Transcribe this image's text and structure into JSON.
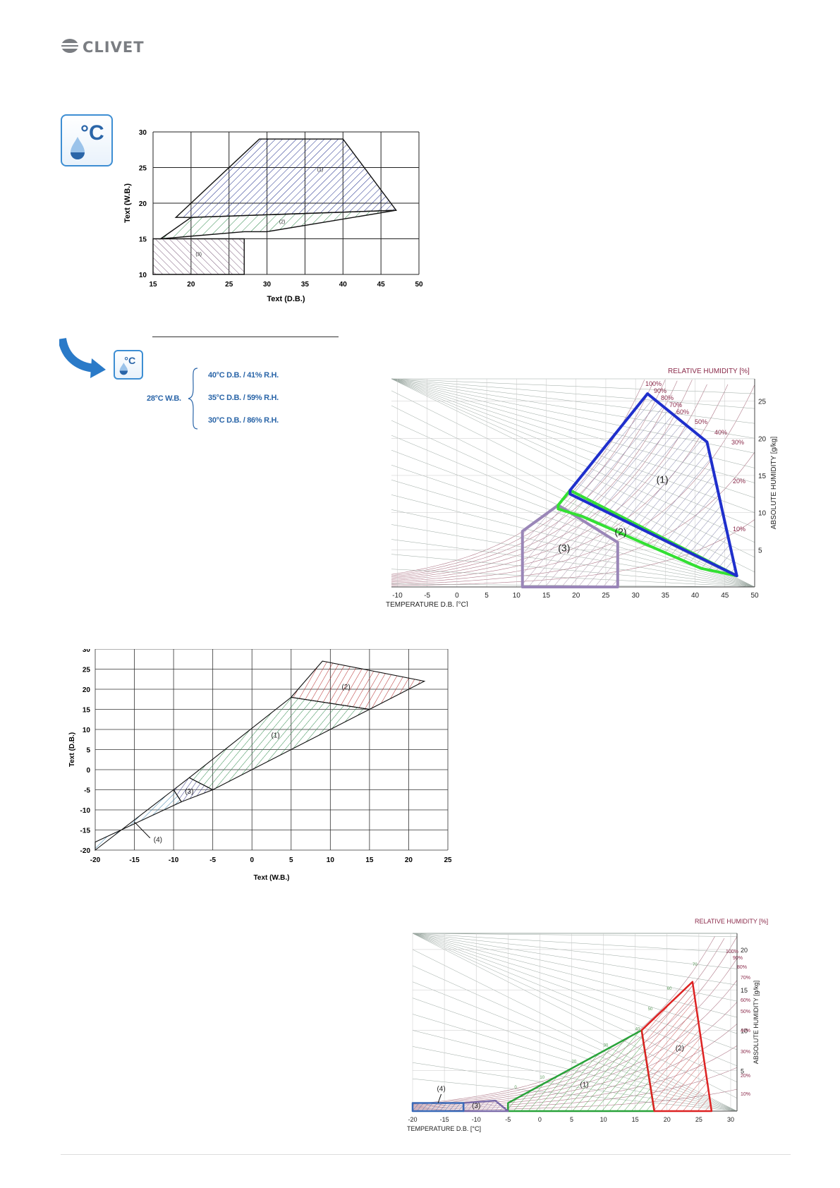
{
  "brand": {
    "logo_text": "CLIVET"
  },
  "icons": {
    "cooling": "temperature-humidity-icon",
    "arrow": "curved-arrow-icon"
  },
  "conditions": {
    "wet_bulb": "28°C W.B.",
    "items": [
      "40°C D.B. / 41% R.H.",
      "35°C D.B. / 59% R.H.",
      "30°C D.B. / 86% R.H."
    ]
  },
  "colors": {
    "accent": "#2a65a8",
    "zone1": "#1b2a8a",
    "zone2": "#2f8a4c",
    "zone3": "#7a5a7a",
    "heat1": "#2f8a4c",
    "heat2": "#b42a2a",
    "heat3": "#3a3a8a",
    "heat4": "#2a7aa8"
  },
  "chart_data": [
    {
      "type": "area",
      "xlabel": "Text (D.B.)",
      "ylabel": "Text (W.B.)",
      "xlim": [
        15,
        50
      ],
      "ylim": [
        10,
        30
      ],
      "x_ticks": [
        15,
        20,
        25,
        30,
        35,
        40,
        45,
        50
      ],
      "y_ticks": [
        10,
        15,
        20,
        25,
        30
      ],
      "grid": true,
      "zones": [
        {
          "label": "(1)",
          "points": [
            [
              18,
              18
            ],
            [
              29,
              29
            ],
            [
              40,
              29
            ],
            [
              47,
              19
            ],
            [
              20,
              18
            ]
          ]
        },
        {
          "label": "(2)",
          "points": [
            [
              16,
              15
            ],
            [
              20,
              18
            ],
            [
              47,
              19
            ],
            [
              30,
              16
            ],
            [
              27,
              16
            ]
          ]
        },
        {
          "label": "(3)",
          "points": [
            [
              15,
              10
            ],
            [
              15,
              15
            ],
            [
              27,
              15
            ],
            [
              27,
              10
            ]
          ]
        }
      ]
    },
    {
      "type": "area",
      "title": "RELATIVE HUMIDITY [%]",
      "xlabel": "TEMPERATURE D.B. [°C]",
      "ylabel": "ABSOLUTE HUMIDITY [g/kg]",
      "x_ticks": [
        -10,
        -5,
        0,
        5,
        10,
        15,
        20,
        25,
        30,
        35,
        40,
        45,
        50
      ],
      "y_ticks": [
        5,
        10,
        15,
        20,
        25
      ],
      "rh_labels": [
        "100%",
        "90%",
        "80%",
        "70%",
        "60%",
        "50%",
        "40%",
        "30%",
        "20%",
        "10%"
      ],
      "zones": [
        {
          "label": "(1)",
          "points": [
            [
              19,
              13
            ],
            [
              32,
              26
            ],
            [
              42,
              19.5
            ],
            [
              47,
              1.5
            ],
            [
              19,
              12.5
            ]
          ]
        },
        {
          "label": "(2)",
          "points": [
            [
              17,
              11
            ],
            [
              19,
              13
            ],
            [
              47,
              1.5
            ],
            [
              41,
              2.5
            ],
            [
              21,
              9.5
            ],
            [
              17,
              10.5
            ]
          ]
        },
        {
          "label": "(3)",
          "points": [
            [
              11,
              7.5
            ],
            [
              17,
              11
            ],
            [
              27,
              6
            ],
            [
              27,
              0
            ],
            [
              11,
              0
            ]
          ]
        }
      ]
    },
    {
      "type": "area",
      "xlabel": "Text (W.B.)",
      "ylabel": "Text (D.B.)",
      "xlim": [
        -20,
        25
      ],
      "ylim": [
        -20,
        30
      ],
      "x_ticks": [
        -20,
        -15,
        -10,
        -5,
        0,
        5,
        10,
        15,
        20,
        25
      ],
      "y_ticks": [
        -20,
        -15,
        -10,
        -5,
        0,
        5,
        10,
        15,
        20,
        25,
        30
      ],
      "grid": true,
      "zones": [
        {
          "label": "(1)",
          "points": [
            [
              -8,
              -2
            ],
            [
              5,
              18
            ],
            [
              15,
              15
            ],
            [
              -5,
              -5
            ]
          ]
        },
        {
          "label": "(2)",
          "points": [
            [
              5,
              18
            ],
            [
              9,
              27
            ],
            [
              22,
              22
            ],
            [
              15,
              15
            ]
          ]
        },
        {
          "label": "(3)",
          "points": [
            [
              -10,
              -5
            ],
            [
              -8,
              -2
            ],
            [
              -5,
              -5
            ],
            [
              -9,
              -8
            ]
          ]
        },
        {
          "label": "(4)",
          "points": [
            [
              -20,
              -20
            ],
            [
              -10,
              -5
            ],
            [
              -9,
              -8
            ],
            [
              -20,
              -18
            ]
          ]
        }
      ]
    },
    {
      "type": "area",
      "title": "RELATIVE HUMIDITY [%]",
      "xlabel": "TEMPERATURE D.B. [°C]",
      "ylabel": "ABSOLUTE HUMIDITY [g/kg]",
      "x_ticks": [
        -20,
        -15,
        -10,
        -5,
        0,
        5,
        10,
        15,
        20,
        25,
        30
      ],
      "y_ticks": [
        5,
        10,
        15,
        20
      ],
      "rh_labels": [
        "100%",
        "90%",
        "80%",
        "70%",
        "60%",
        "50%",
        "40%",
        "30%",
        "20%",
        "10%"
      ],
      "wb_labels": [
        "0",
        "10",
        "20",
        "30",
        "40",
        "50",
        "60",
        "70"
      ],
      "zones": [
        {
          "label": "(1)",
          "points": [
            [
              -5,
              0
            ],
            [
              -5,
              1
            ],
            [
              16,
              10
            ],
            [
              18,
              0
            ]
          ]
        },
        {
          "label": "(2)",
          "points": [
            [
              16,
              10
            ],
            [
              24,
              16
            ],
            [
              27,
              0
            ],
            [
              18,
              0
            ]
          ]
        },
        {
          "label": "(3)",
          "points": [
            [
              -12,
              0
            ],
            [
              -12,
              1
            ],
            [
              -7,
              1.3
            ],
            [
              -5,
              0
            ]
          ]
        },
        {
          "label": "(4)",
          "points": [
            [
              -20,
              0
            ],
            [
              -20,
              1
            ],
            [
              -12,
              1
            ],
            [
              -12,
              0
            ]
          ]
        }
      ]
    }
  ]
}
